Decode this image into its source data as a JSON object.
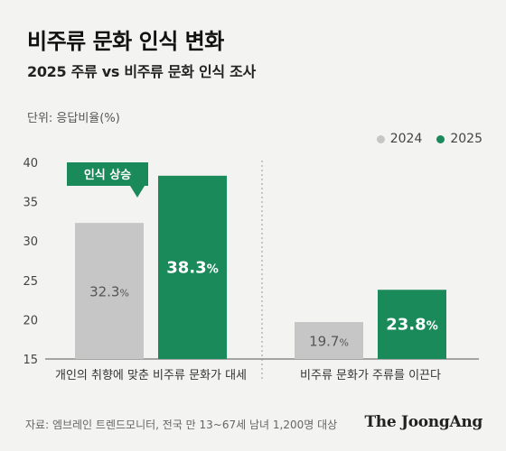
{
  "header": {
    "title": "비주류 문화 인식 변화",
    "subtitle": "2025 주류 vs 비주류 문화 인식 조사",
    "unit_label": "단위: 응답비율(%)"
  },
  "footer": {
    "source": "자료: 엠브레인 트렌드모니터, 전국 만 13~67세 남녀 1,200명 대상",
    "logo": "The JoongAng"
  },
  "colors": {
    "series_2024": "#c6c6c6",
    "series_2025": "#1a8a5a",
    "callout": "#1a8a5a"
  },
  "chart_data": {
    "type": "bar",
    "title": "비주류 문화 인식 변화",
    "subtitle": "2025 주류 vs 비주류 문화 인식 조사",
    "ylabel": "단위: 응답비율(%)",
    "categories": [
      "개인의 취향에 맞춘 비주류 문화가 대세",
      "비주류 문화가 주류를 이끈다"
    ],
    "series": [
      {
        "name": "2024",
        "values": [
          32.3,
          19.7
        ],
        "labels": [
          "32.3%",
          "19.7%"
        ]
      },
      {
        "name": "2025",
        "values": [
          38.3,
          23.8
        ],
        "labels": [
          "38.3%",
          "23.8%"
        ]
      }
    ],
    "ylim": [
      15,
      40
    ],
    "yticks": [
      15,
      20,
      25,
      30,
      35,
      40
    ],
    "grid": false,
    "legend_position": "top-right",
    "annotations": [
      {
        "text": "인식 상승",
        "category_index": 0
      }
    ]
  }
}
